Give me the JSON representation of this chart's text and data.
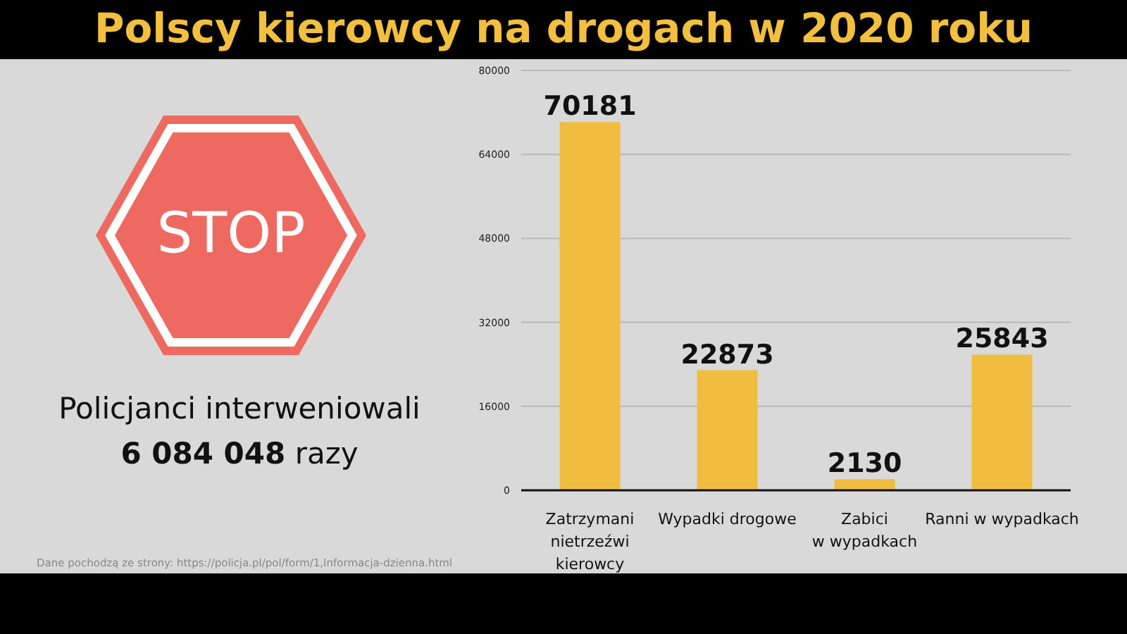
{
  "chart_data": {
    "type": "bar",
    "title": "Polscy kierowcy na drogach w 2020 roku",
    "categories": [
      "Zatrzymani\nnietrzeźwi\nkierowcy",
      "Wypadki drogowe",
      "Zabici\nw wypadkach",
      "Ranni w wypadkach"
    ],
    "values": [
      70181,
      22873,
      2130,
      25843
    ],
    "color": "#f0bd40",
    "ylim": [
      0,
      80000
    ],
    "yticks": [
      0,
      16000,
      32000,
      48000,
      64000,
      80000
    ],
    "grid": "y",
    "data_labels": true,
    "legend": false,
    "annotations": [
      "STOP",
      "Policjanci interweniowali",
      "6 084 048",
      "razy",
      "Dane pochodzą ze strony: https://policja.pl/pol/form/1,Informacja-dzienna.html"
    ]
  }
}
